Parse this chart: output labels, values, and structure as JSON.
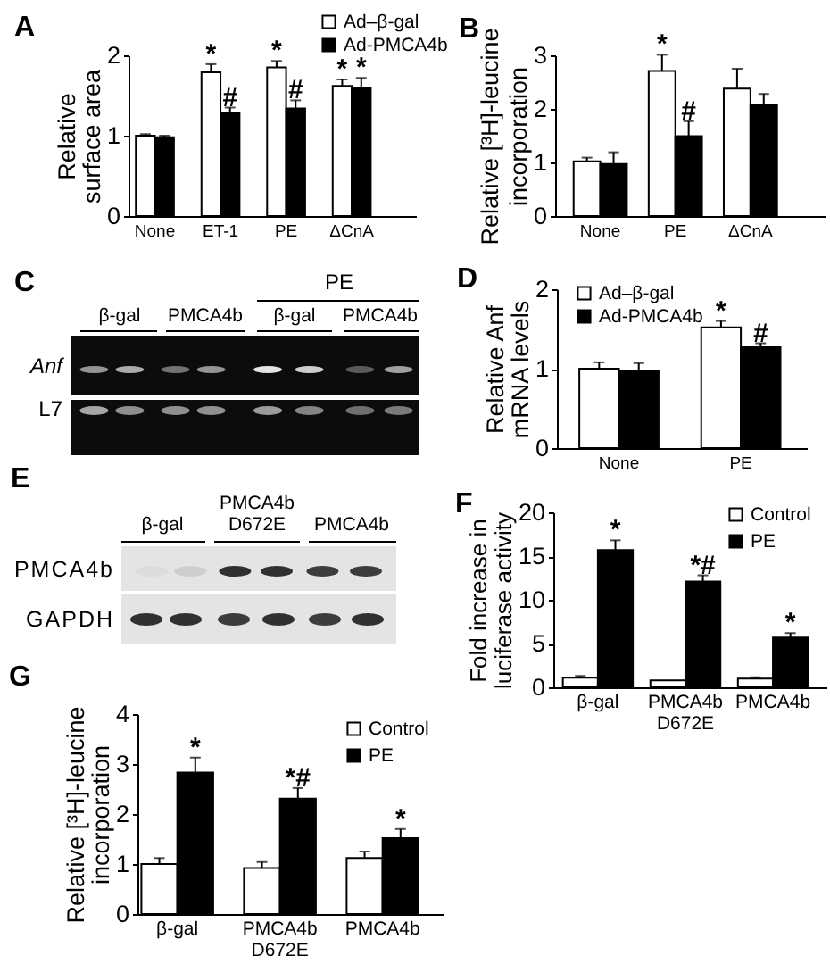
{
  "chart_data": [
    {
      "type": "bar",
      "title": "A",
      "ylabel": "Relative surface area",
      "categories": [
        "None",
        "ET-1",
        "PE",
        "ΔCnA"
      ],
      "series": [
        {
          "name": "Ad–β-gal",
          "color": "#ffffff",
          "values": [
            1.0,
            1.79,
            1.85,
            1.62
          ],
          "errors": [
            0.02,
            0.1,
            0.08,
            0.08
          ],
          "value_labels": [
            null,
            "*",
            "*",
            "*"
          ]
        },
        {
          "name": "Ad-PMCA4b",
          "color": "#000000",
          "values": [
            0.98,
            1.28,
            1.34,
            1.6
          ],
          "errors": [
            0.02,
            0.07,
            0.1,
            0.12
          ],
          "value_labels": [
            null,
            "#",
            "#",
            "*"
          ]
        }
      ],
      "ylim": [
        0,
        2
      ],
      "yticks": [
        0,
        1,
        2
      ],
      "legend": "top right"
    },
    {
      "type": "bar",
      "title": "B",
      "ylabel": "Relative [³H]-leucine incorporation",
      "categories": [
        "None",
        "PE",
        "ΔCnA"
      ],
      "series": [
        {
          "color": "#ffffff",
          "values": [
            1.02,
            2.71,
            2.38
          ],
          "errors": [
            0.07,
            0.3,
            0.37
          ],
          "value_labels": [
            null,
            "*",
            null
          ]
        },
        {
          "color": "#000000",
          "values": [
            0.97,
            1.49,
            2.07
          ],
          "errors": [
            0.22,
            0.28,
            0.21
          ],
          "value_labels": [
            null,
            "#",
            null
          ]
        }
      ],
      "ylim": [
        0,
        3
      ],
      "yticks": [
        0,
        1,
        2,
        3
      ]
    },
    {
      "type": "other",
      "title": "C",
      "annotations": [
        "PE",
        "β-gal",
        "PMCA4b",
        "β-gal",
        "PMCA4b",
        "Anf",
        "L7"
      ]
    },
    {
      "type": "bar",
      "title": "D",
      "ylabel": "Relative Anf mRNA levels",
      "categories": [
        "None",
        "PE"
      ],
      "series": [
        {
          "name": "Ad–β-gal",
          "color": "#ffffff",
          "values": [
            1.0,
            1.52
          ],
          "errors": [
            0.08,
            0.08
          ],
          "value_labels": [
            null,
            "*"
          ]
        },
        {
          "name": "Ad-PMCA4b",
          "color": "#000000",
          "values": [
            0.97,
            1.27
          ],
          "errors": [
            0.1,
            0.05
          ],
          "value_labels": [
            null,
            "#"
          ]
        }
      ],
      "ylim": [
        0,
        2
      ],
      "yticks": [
        0,
        1,
        2
      ],
      "legend": "top left"
    },
    {
      "type": "other",
      "title": "E",
      "annotations": [
        "β-gal",
        "PMCA4b D672E",
        "PMCA4b",
        "PMCA4b",
        "GAPDH"
      ]
    },
    {
      "type": "bar",
      "title": "F",
      "ylabel": "Fold increase in luciferase activity",
      "categories": [
        "β-gal",
        "PMCA4b D672E",
        "PMCA4b"
      ],
      "series": [
        {
          "name": "Control",
          "color": "#ffffff",
          "values": [
            1.1,
            0.8,
            1.0
          ],
          "errors": [
            0.2,
            null,
            0.15
          ]
        },
        {
          "name": "PE",
          "color": "#000000",
          "values": [
            15.7,
            12.1,
            5.7
          ],
          "errors": [
            1.1,
            0.7,
            0.5
          ],
          "value_labels": [
            "*",
            "*#",
            "*"
          ]
        }
      ],
      "ylim": [
        0,
        20
      ],
      "yticks": [
        0,
        5,
        10,
        15,
        20
      ],
      "legend": "top right"
    },
    {
      "type": "bar",
      "title": "G",
      "ylabel": "Relative [³H]-leucine incorporation",
      "categories": [
        "β-gal",
        "PMCA4b D672E",
        "PMCA4b"
      ],
      "series": [
        {
          "name": "Control",
          "color": "#ffffff",
          "values": [
            1.0,
            0.92,
            1.12
          ],
          "errors": [
            0.12,
            0.12,
            0.13
          ]
        },
        {
          "name": "PE",
          "color": "#000000",
          "values": [
            2.83,
            2.31,
            1.52
          ],
          "errors": [
            0.3,
            0.21,
            0.18
          ],
          "value_labels": [
            "*",
            "*#",
            "*"
          ]
        }
      ],
      "ylim": [
        0,
        4
      ],
      "yticks": [
        0,
        1,
        2,
        3,
        4
      ],
      "legend": "top right"
    }
  ]
}
